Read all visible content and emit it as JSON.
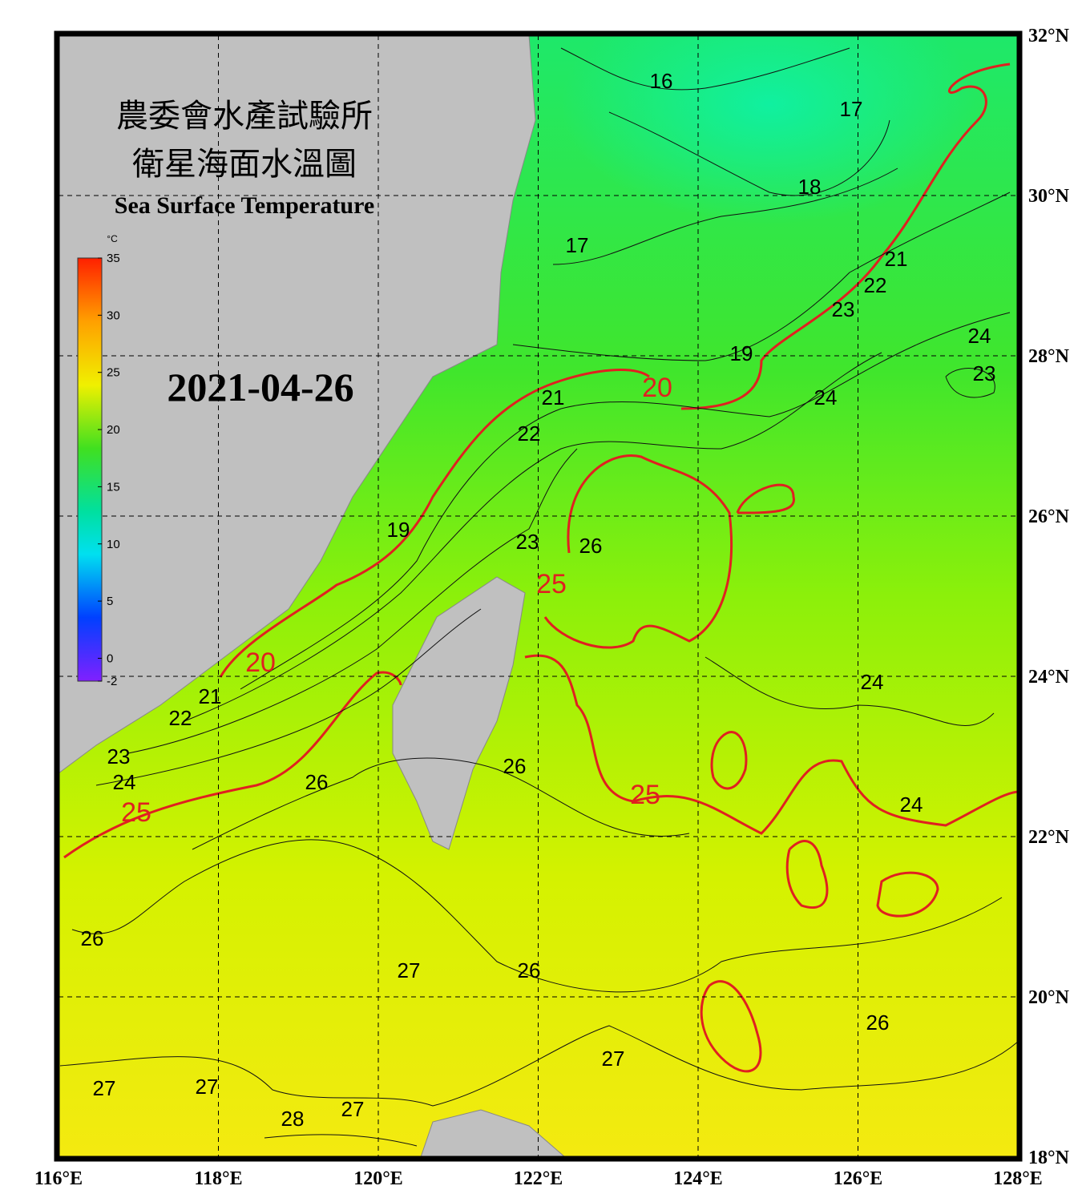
{
  "map": {
    "title_zh": "農委會水產試驗所",
    "subtitle_zh": "衛星海面水溫圖",
    "title_en": "Sea Surface Temperature",
    "date": "2021-04-26",
    "colorbar": {
      "unit": "°C",
      "range": [
        -2,
        35
      ],
      "ticks": [
        35,
        30,
        25,
        20,
        15,
        10,
        5,
        0,
        -2
      ]
    },
    "lat_range": [
      18,
      32
    ],
    "lon_range": [
      116,
      128
    ],
    "lat_ticks": [
      {
        "value": 32,
        "label": "32°N"
      },
      {
        "value": 30,
        "label": "30°N"
      },
      {
        "value": 28,
        "label": "28°N"
      },
      {
        "value": 26,
        "label": "26°N"
      },
      {
        "value": 24,
        "label": "24°N"
      },
      {
        "value": 22,
        "label": "22°N"
      },
      {
        "value": 20,
        "label": "20°N"
      },
      {
        "value": 18,
        "label": "18°N"
      }
    ],
    "lon_ticks": [
      {
        "value": 116,
        "label": "116°E"
      },
      {
        "value": 118,
        "label": "118°E"
      },
      {
        "value": 120,
        "label": "120°E"
      },
      {
        "value": 122,
        "label": "122°E"
      },
      {
        "value": 124,
        "label": "124°E"
      },
      {
        "value": 126,
        "label": "126°E"
      },
      {
        "value": 128,
        "label": "128°E"
      }
    ],
    "contour_labels": [
      16,
      17,
      18,
      17,
      21,
      22,
      23,
      24,
      23,
      19,
      20,
      21,
      22,
      24,
      19,
      23,
      26,
      25,
      24,
      20,
      21,
      22,
      23,
      24,
      25,
      26,
      26,
      25,
      24,
      26,
      27,
      26,
      26,
      27,
      27,
      27,
      27,
      28
    ]
  }
}
